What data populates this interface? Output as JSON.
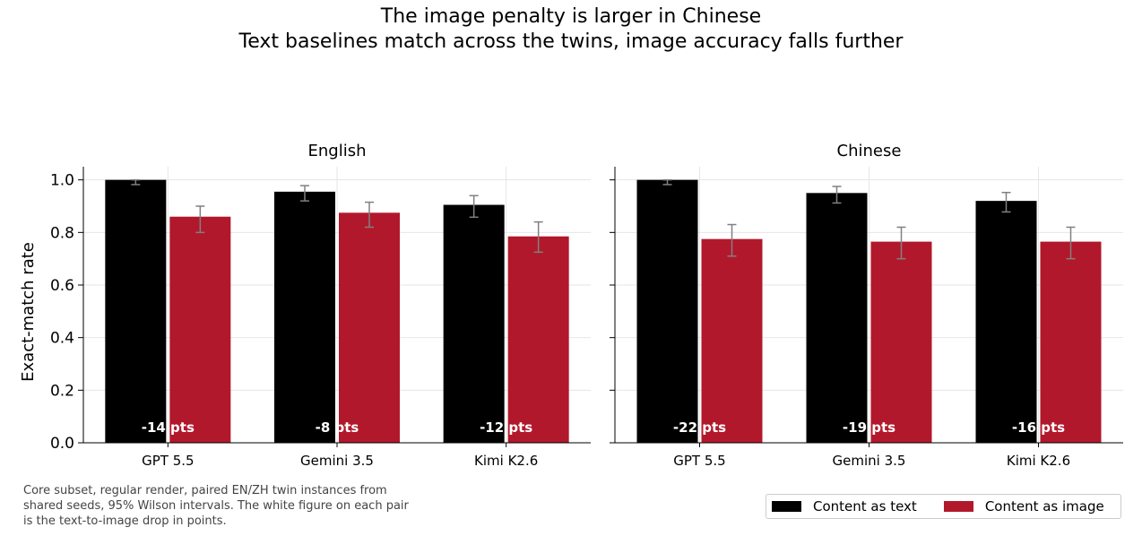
{
  "title_line1": "The image penalty is larger in Chinese",
  "title_line2": "Text baselines match across the twins, image accuracy falls further",
  "note": "Core subset, regular render, paired EN/ZH twin instances from shared seeds, 95% Wilson intervals. The white figure on each pair is the text-to-image drop in points.",
  "colors": {
    "text": "#000000",
    "image": "#b2182b",
    "errorbar": "#808080",
    "grid": "#e6e6e6"
  },
  "legend": [
    {
      "label": "Content as text",
      "color": "#000000"
    },
    {
      "label": "Content as image",
      "color": "#b2182b"
    }
  ],
  "chart_data": [
    {
      "type": "bar",
      "title": "English",
      "categories": [
        "GPT 5.5",
        "Gemini 3.5",
        "Kimi K2.6"
      ],
      "ylabel": "Exact-match rate",
      "ylim": [
        0,
        1.05
      ],
      "yticks": [
        "0.0",
        "0.2",
        "0.4",
        "0.6",
        "0.8",
        "1.0"
      ],
      "grid": true,
      "series": [
        {
          "name": "Content as text",
          "values": [
            1.0,
            0.955,
            0.905
          ],
          "ci_low": [
            0.982,
            0.92,
            0.858
          ],
          "ci_high": [
            1.0,
            0.978,
            0.94
          ]
        },
        {
          "name": "Content as image",
          "values": [
            0.86,
            0.875,
            0.785
          ],
          "ci_low": [
            0.8,
            0.82,
            0.725
          ],
          "ci_high": [
            0.9,
            0.915,
            0.84
          ]
        }
      ],
      "annotations": [
        "-14 pts",
        "-8 pts",
        "-12 pts"
      ]
    },
    {
      "type": "bar",
      "title": "Chinese",
      "categories": [
        "GPT 5.5",
        "Gemini 3.5",
        "Kimi K2.6"
      ],
      "ylabel": "",
      "ylim": [
        0,
        1.05
      ],
      "grid": true,
      "series": [
        {
          "name": "Content as text",
          "values": [
            1.0,
            0.95,
            0.92
          ],
          "ci_low": [
            0.982,
            0.912,
            0.878
          ],
          "ci_high": [
            1.0,
            0.975,
            0.952
          ]
        },
        {
          "name": "Content as image",
          "values": [
            0.775,
            0.765,
            0.765
          ],
          "ci_low": [
            0.71,
            0.7,
            0.7
          ],
          "ci_high": [
            0.83,
            0.82,
            0.82
          ]
        }
      ],
      "annotations": [
        "-22 pts",
        "-19 pts",
        "-16 pts"
      ]
    }
  ]
}
